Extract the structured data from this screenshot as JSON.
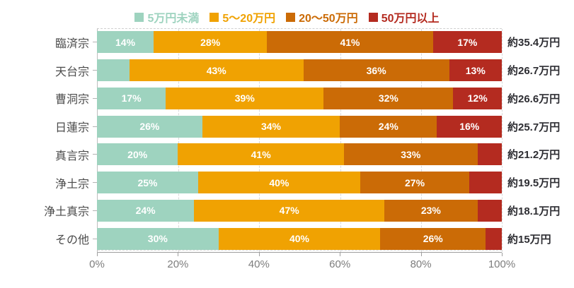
{
  "chart_data": {
    "type": "bar",
    "orientation": "horizontal",
    "stacked": true,
    "title": "",
    "categories": [
      "臨済宗",
      "天台宗",
      "曹洞宗",
      "日蓮宗",
      "真言宗",
      "浄土宗",
      "浄土真宗",
      "その他"
    ],
    "series": [
      {
        "name": "5万円未満",
        "color": "#9ed3bf",
        "values": [
          14,
          8,
          17,
          26,
          20,
          25,
          24,
          30
        ]
      },
      {
        "name": "5〜20万円",
        "color": "#f0a202",
        "values": [
          28,
          43,
          39,
          34,
          41,
          40,
          47,
          40
        ]
      },
      {
        "name": "20〜50万円",
        "color": "#cb6b06",
        "values": [
          41,
          36,
          32,
          24,
          33,
          27,
          23,
          26
        ]
      },
      {
        "name": "50万円以上",
        "color": "#b42b20",
        "values": [
          17,
          13,
          12,
          16,
          6,
          8,
          6,
          4
        ]
      }
    ],
    "row_totals": [
      "約35.4万円",
      "約26.7万円",
      "約26.6万円",
      "約25.7万円",
      "約21.2万円",
      "約19.5万円",
      "約18.1万円",
      "約15万円"
    ],
    "value_suffix": "%",
    "label_min_value": 10,
    "x_ticks": [
      0,
      20,
      40,
      60,
      80,
      100
    ],
    "x_tick_suffix": "%",
    "xlim": [
      0,
      100
    ],
    "gridline_positions": [
      20,
      40,
      60,
      80,
      100
    ],
    "grid": "vertical-dashed",
    "legend_position": "top"
  },
  "colors": {
    "segment_label_text": "#ffffff",
    "category_text": "#4b4b4b",
    "total_text": "#2d2d32",
    "axis_text": "#7d7d7d",
    "grid_line": "#d8d8d8",
    "axis_line": "#9e9e9e"
  }
}
